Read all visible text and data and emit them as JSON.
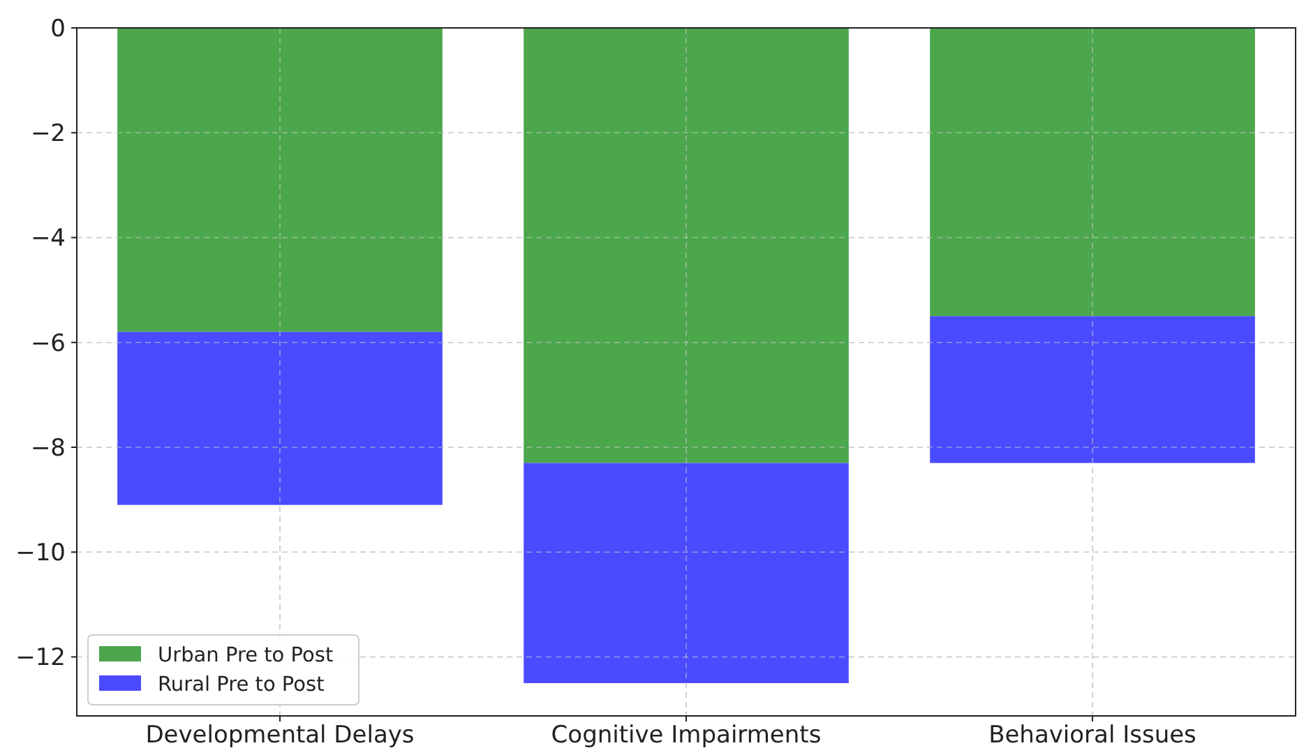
{
  "chart_data": {
    "type": "bar",
    "stacked": true,
    "categories": [
      "Developmental Delays",
      "Cognitive Impairments",
      "Behavioral Issues"
    ],
    "series": [
      {
        "name": "Urban Pre to Post",
        "color": "#4ca64c",
        "values": [
          -5.8,
          -8.3,
          -5.5
        ]
      },
      {
        "name": "Rural Pre to Post",
        "color": "#4a4aff",
        "values": [
          -3.3,
          -4.2,
          -2.8
        ]
      }
    ],
    "ylim": [
      -13.125,
      0
    ],
    "yticks": [
      {
        "value": -12,
        "label": "−12"
      },
      {
        "value": -10,
        "label": "−10"
      },
      {
        "value": -8,
        "label": "−8"
      },
      {
        "value": -6,
        "label": "−6"
      },
      {
        "value": -4,
        "label": "−4"
      },
      {
        "value": -2,
        "label": "−2"
      },
      0
    ],
    "grid": true,
    "legend": "bottom left"
  }
}
